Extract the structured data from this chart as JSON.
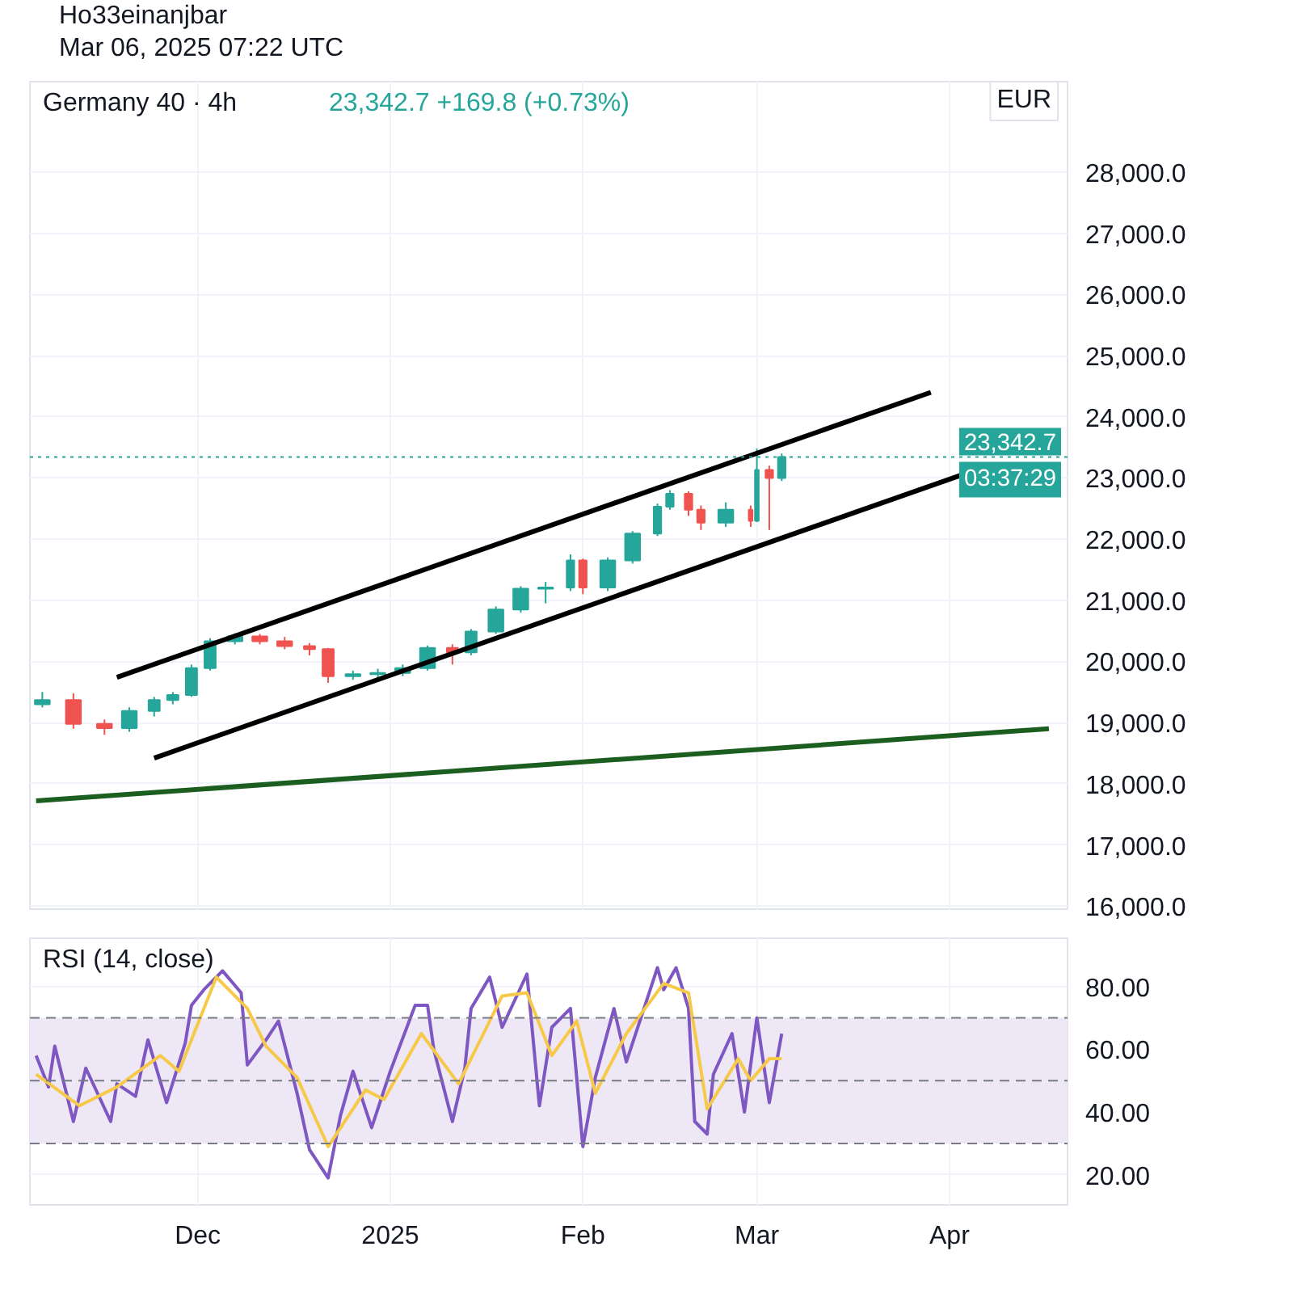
{
  "chart_data": [
    {
      "type": "candlestick",
      "title": "Germany 40 · 4h",
      "subtitle": "23,342.7  +169.8 (+0.73%)",
      "annotations": [
        "Ho33einanjbar",
        "Mar 06, 2025 07:22 UTC",
        "EUR",
        "03:37:29"
      ],
      "x": [
        "2024-11-06",
        "2024-11-11",
        "2024-11-16",
        "2024-11-20",
        "2024-11-24",
        "2024-11-27",
        "2024-11-30",
        "2024-12-03",
        "2024-12-07",
        "2024-12-11",
        "2024-12-15",
        "2024-12-19",
        "2024-12-22",
        "2024-12-26",
        "2024-12-30",
        "2025-01-03",
        "2025-01-07",
        "2025-01-11",
        "2025-01-14",
        "2025-01-18",
        "2025-01-22",
        "2025-01-26",
        "2025-01-30",
        "2025-02-01",
        "2025-02-05",
        "2025-02-09",
        "2025-02-13",
        "2025-02-15",
        "2025-02-18",
        "2025-02-20",
        "2025-02-24",
        "2025-02-28",
        "2025-03-01",
        "2025-03-03",
        "2025-03-05"
      ],
      "ohlc": [
        [
          19300,
          19500,
          19250,
          19370
        ],
        [
          19370,
          19480,
          18900,
          18980
        ],
        [
          18980,
          19050,
          18800,
          18910
        ],
        [
          18910,
          19250,
          18850,
          19190
        ],
        [
          19190,
          19420,
          19100,
          19370
        ],
        [
          19370,
          19500,
          19300,
          19450
        ],
        [
          19450,
          19950,
          19420,
          19890
        ],
        [
          19890,
          20380,
          19850,
          20330
        ],
        [
          20330,
          20460,
          20280,
          20410
        ],
        [
          20410,
          20450,
          20280,
          20330
        ],
        [
          20330,
          20400,
          20200,
          20250
        ],
        [
          20250,
          20300,
          20100,
          20200
        ],
        [
          20200,
          20220,
          19650,
          19760
        ],
        [
          19760,
          19850,
          19700,
          19790
        ],
        [
          19790,
          19880,
          19720,
          19810
        ],
        [
          19810,
          19950,
          19760,
          19890
        ],
        [
          19890,
          20260,
          19850,
          20220
        ],
        [
          20220,
          20280,
          19950,
          20150
        ],
        [
          20150,
          20530,
          20100,
          20490
        ],
        [
          20490,
          20900,
          20450,
          20850
        ],
        [
          20850,
          21230,
          20800,
          21190
        ],
        [
          21190,
          21300,
          20950,
          21210
        ],
        [
          21210,
          21750,
          21150,
          21650
        ],
        [
          21650,
          21680,
          21100,
          21210
        ],
        [
          21210,
          21700,
          21150,
          21650
        ],
        [
          21650,
          22130,
          21600,
          22090
        ],
        [
          22090,
          22580,
          22050,
          22530
        ],
        [
          22530,
          22800,
          22480,
          22740
        ],
        [
          22740,
          22780,
          22380,
          22480
        ],
        [
          22480,
          22550,
          22150,
          22270
        ],
        [
          22270,
          22600,
          22200,
          22480
        ],
        [
          22480,
          22550,
          22200,
          22300
        ],
        [
          22300,
          23480,
          22280,
          23130
        ],
        [
          23130,
          23200,
          22150,
          23000
        ],
        [
          23000,
          23400,
          22950,
          23342.7
        ]
      ],
      "colors": [
        "#26a69a",
        "#ef5350",
        "#ef5350",
        "#26a69a",
        "#26a69a",
        "#26a69a",
        "#26a69a",
        "#26a69a",
        "#26a69a",
        "#ef5350",
        "#ef5350",
        "#ef5350",
        "#ef5350",
        "#26a69a",
        "#26a69a",
        "#26a69a",
        "#26a69a",
        "#ef5350",
        "#26a69a",
        "#26a69a",
        "#26a69a",
        "#26a69a",
        "#26a69a",
        "#ef5350",
        "#26a69a",
        "#26a69a",
        "#26a69a",
        "#26a69a",
        "#ef5350",
        "#ef5350",
        "#26a69a",
        "#ef5350",
        "#26a69a",
        "#ef5350",
        "#26a69a"
      ],
      "series": [
        {
          "type": "line",
          "color": "#000000",
          "x": [
            "2024-11-18",
            "2025-03-29"
          ],
          "values": [
            19740,
            24400
          ]
        },
        {
          "type": "line",
          "color": "#000000",
          "x": [
            "2024-11-24",
            "2025-04-03"
          ],
          "values": [
            18420,
            23050
          ]
        },
        {
          "type": "line",
          "color": "#1b5e20",
          "x": [
            "2024-11-05",
            "2025-04-17"
          ],
          "values": [
            17720,
            18900
          ]
        }
      ],
      "xlim": [
        "2024-11-04",
        "2025-04-20"
      ],
      "ylim": [
        15950,
        29480
      ],
      "xticks": [
        {
          "value": "2024-12-01",
          "label": null
        },
        {
          "value": "2025-01-01",
          "label": null
        },
        {
          "value": "2025-02-01",
          "label": null
        },
        {
          "value": "2025-03-01",
          "label": null
        },
        {
          "value": "2025-04-01",
          "label": null
        }
      ],
      "yticks": [
        {
          "value": 16000,
          "label": "16,000.0"
        },
        {
          "value": 17000,
          "label": "17,000.0"
        },
        {
          "value": 18000,
          "label": "18,000.0"
        },
        {
          "value": 19000,
          "label": "19,000.0"
        },
        {
          "value": 20000,
          "label": "20,000.0"
        },
        {
          "value": 21000,
          "label": "21,000.0"
        },
        {
          "value": 22000,
          "label": "22,000.0"
        },
        {
          "value": 23000,
          "label": "23,000.0"
        },
        {
          "value": 24000,
          "label": "24,000.0"
        },
        {
          "value": 25000,
          "label": "25,000.0"
        },
        {
          "value": 26000,
          "label": "26,000.0"
        },
        {
          "value": 27000,
          "label": "27,000.0"
        },
        {
          "value": 28000,
          "label": "28,000.0"
        }
      ],
      "ref_lines": [
        {
          "axis": "y",
          "value": 23342.7,
          "label": "23,342.7",
          "color": "#26a69a",
          "line_style": "dotted"
        }
      ],
      "grid": true,
      "tick_labels": "y"
    },
    {
      "type": "line",
      "title": "RSI (14, close)",
      "series": [
        {
          "color": "#7e57c2",
          "x": [
            "2024-11-05",
            "2024-11-07",
            "2024-11-08",
            "2024-11-11",
            "2024-11-13",
            "2024-11-17",
            "2024-11-18",
            "2024-11-21",
            "2024-11-23",
            "2024-11-26",
            "2024-11-29",
            "2024-11-30",
            "2024-12-02",
            "2024-12-05",
            "2024-12-08",
            "2024-12-09",
            "2024-12-12",
            "2024-12-14",
            "2024-12-17",
            "2024-12-19",
            "2024-12-22",
            "2024-12-24",
            "2024-12-26",
            "2024-12-29",
            "2025-01-01",
            "2025-01-05",
            "2025-01-07",
            "2025-01-08",
            "2025-01-11",
            "2025-01-13",
            "2025-01-14",
            "2025-01-17",
            "2025-01-19",
            "2025-01-23",
            "2025-01-25",
            "2025-01-27",
            "2025-01-30",
            "2025-02-01",
            "2025-02-03",
            "2025-02-06",
            "2025-02-08",
            "2025-02-11",
            "2025-02-13",
            "2025-02-14",
            "2025-02-16",
            "2025-02-18",
            "2025-02-19",
            "2025-02-21",
            "2025-02-22",
            "2025-02-25",
            "2025-02-27",
            "2025-03-01",
            "2025-03-03",
            "2025-03-05"
          ],
          "values": [
            58,
            48,
            61,
            37,
            54,
            37,
            49,
            45,
            63,
            43,
            62,
            74,
            79,
            85,
            78,
            55,
            63,
            69,
            46,
            28,
            19,
            39,
            53,
            35,
            53,
            74,
            74,
            60,
            37,
            54,
            73,
            83,
            67,
            84,
            42,
            67,
            73,
            29,
            51,
            73,
            56,
            74,
            86,
            79,
            86,
            73,
            37,
            33,
            52,
            65,
            40,
            70,
            43,
            65
          ]
        },
        {
          "color": "#f7c948",
          "x": [
            "2024-11-05",
            "2024-11-12",
            "2024-11-18",
            "2024-11-25",
            "2024-11-28",
            "2024-12-04",
            "2024-12-09",
            "2024-12-12",
            "2024-12-17",
            "2024-12-22",
            "2024-12-28",
            "2024-12-31",
            "2025-01-06",
            "2025-01-12",
            "2025-01-19",
            "2025-01-23",
            "2025-01-27",
            "2025-01-31",
            "2025-02-03",
            "2025-02-08",
            "2025-02-14",
            "2025-02-18",
            "2025-02-21",
            "2025-02-26",
            "2025-02-28",
            "2025-03-03",
            "2025-03-05"
          ],
          "values": [
            52,
            42,
            48,
            58,
            53,
            83,
            73,
            61,
            51,
            29,
            47,
            44,
            65,
            49,
            77,
            78,
            58,
            69,
            46,
            65,
            81,
            78,
            41,
            57,
            50,
            57,
            57
          ]
        }
      ],
      "xlim": [
        "2024-11-04",
        "2025-04-20"
      ],
      "ylim": [
        10.4,
        95.4
      ],
      "xticks": [
        {
          "value": "2024-12-01",
          "label": "Dec"
        },
        {
          "value": "2025-01-01",
          "label": "2025"
        },
        {
          "value": "2025-02-01",
          "label": "Feb"
        },
        {
          "value": "2025-03-01",
          "label": "Mar"
        },
        {
          "value": "2025-04-01",
          "label": "Apr"
        }
      ],
      "yticks": [
        {
          "value": 20,
          "label": "20.00"
        },
        {
          "value": 40,
          "label": "40.00"
        },
        {
          "value": 60,
          "label": "60.00"
        },
        {
          "value": 80,
          "label": "80.00"
        }
      ],
      "bands": [
        {
          "axis": "y",
          "from": 30,
          "to": 70,
          "color": "#ede7f6"
        }
      ],
      "ref_lines": [
        {
          "axis": "y",
          "value": 70,
          "color": "#787b86",
          "line_style": "dashed"
        },
        {
          "axis": "y",
          "value": 50,
          "color": "#787b86",
          "line_style": "dashed"
        },
        {
          "axis": "y",
          "value": 30,
          "color": "#787b86",
          "line_style": "dashed"
        }
      ],
      "grid": true
    }
  ]
}
